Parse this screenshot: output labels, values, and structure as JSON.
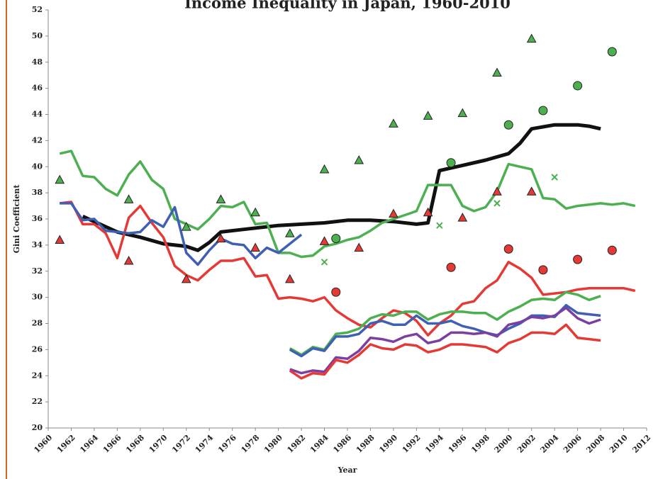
{
  "chart_data": {
    "type": "line",
    "title": "Income Inequality in Japan, 1960-2010",
    "x_label": "Year",
    "y_label": "Gini Coefficient",
    "xlim": [
      1960,
      2012
    ],
    "xticks": [
      1960,
      1962,
      1964,
      1966,
      1968,
      1970,
      1972,
      1974,
      1976,
      1978,
      1980,
      1982,
      1984,
      1986,
      1988,
      1990,
      1992,
      1994,
      1996,
      1998,
      2000,
      2002,
      2004,
      2006,
      2008,
      2010,
      2012
    ],
    "ylim": [
      20,
      52
    ],
    "yticks": [
      20,
      22,
      24,
      26,
      28,
      30,
      32,
      34,
      36,
      38,
      40,
      42,
      44,
      46,
      48,
      50,
      52
    ],
    "series": [
      {
        "marker": "line",
        "color": "#111111",
        "x": [
          1963,
          1964,
          1966,
          1968,
          1970,
          1972,
          1973,
          1974,
          1975,
          1977,
          1980,
          1982,
          1984,
          1986,
          1988,
          1990,
          1992,
          1993,
          1994,
          1996,
          1998,
          2000,
          2001,
          2002,
          2004,
          2006,
          2007,
          2008
        ],
        "values": [
          36.2,
          35.8,
          35.0,
          34.6,
          34.1,
          33.9,
          33.6,
          34.2,
          35.0,
          35.2,
          35.5,
          35.6,
          35.7,
          35.9,
          35.9,
          35.8,
          35.6,
          35.7,
          39.7,
          40.1,
          40.5,
          41.0,
          41.8,
          42.9,
          43.2,
          43.2,
          43.1,
          42.9
        ]
      },
      {
        "marker": "line",
        "color": "#4caf50",
        "x": [
          1961,
          1962,
          1963,
          1964,
          1965,
          1966,
          1967,
          1968,
          1969,
          1970,
          1971,
          1972,
          1973,
          1974,
          1975,
          1976,
          1977,
          1978,
          1979,
          1980,
          1981,
          1982,
          1983,
          1984,
          1985,
          1986,
          1987,
          1988,
          1989,
          1990,
          1991,
          1992,
          1993,
          1994,
          1995,
          1996,
          1997,
          1998,
          1999,
          2000,
          2001,
          2002,
          2003,
          2004,
          2005,
          2006,
          2007,
          2008,
          2009,
          2010,
          2011
        ],
        "values": [
          41.0,
          41.2,
          39.3,
          39.2,
          38.3,
          37.8,
          39.4,
          40.4,
          39.0,
          38.3,
          36.0,
          35.6,
          35.2,
          36.0,
          37.0,
          36.9,
          37.3,
          35.6,
          35.7,
          33.4,
          33.4,
          33.1,
          33.2,
          33.9,
          34.1,
          34.4,
          34.6,
          35.1,
          35.7,
          36.0,
          36.3,
          36.6,
          38.6,
          38.6,
          38.6,
          37.0,
          36.6,
          36.9,
          38.1,
          40.2,
          40.0,
          39.8,
          37.6,
          37.5,
          36.8,
          37.0,
          37.1,
          37.2,
          37.1,
          37.2,
          37.0
        ]
      },
      {
        "marker": "line",
        "color": "#e53935",
        "x": [
          1961,
          1962,
          1963,
          1964,
          1965,
          1966,
          1967,
          1968,
          1969,
          1970,
          1971,
          1972,
          1973,
          1974,
          1975,
          1976,
          1977,
          1978,
          1979,
          1980,
          1981,
          1982,
          1983,
          1984,
          1985,
          1986,
          1987,
          1988,
          1989,
          1990,
          1991,
          1992,
          1993,
          1994,
          1995,
          1996,
          1997,
          1998,
          1999,
          2000,
          2001,
          2002,
          2003,
          2004,
          2005,
          2006,
          2007,
          2008,
          2009,
          2010,
          2011
        ],
        "values": [
          37.2,
          37.3,
          35.6,
          35.6,
          34.9,
          33.0,
          36.1,
          37.0,
          35.7,
          34.6,
          32.4,
          31.7,
          31.3,
          32.1,
          32.8,
          32.8,
          33.0,
          31.6,
          31.7,
          29.9,
          30.0,
          29.9,
          29.7,
          30.0,
          29.0,
          28.4,
          27.9,
          27.7,
          28.4,
          29.0,
          28.8,
          28.2,
          27.1,
          28.0,
          28.6,
          29.5,
          29.7,
          30.7,
          31.3,
          32.7,
          32.2,
          31.5,
          30.2,
          30.3,
          30.4,
          30.6,
          30.7,
          30.7,
          30.7,
          30.7,
          30.5
        ]
      },
      {
        "marker": "line",
        "color": "#3f5fb5",
        "x": [
          1961,
          1962,
          1963,
          1964,
          1965,
          1966,
          1967,
          1968,
          1969,
          1970,
          1971,
          1972,
          1973,
          1974,
          1975,
          1976,
          1977,
          1978,
          1979,
          1980,
          1981,
          1982
        ],
        "values": [
          37.2,
          37.2,
          35.9,
          36.0,
          35.1,
          35.0,
          34.9,
          35.0,
          35.9,
          35.4,
          36.9,
          33.4,
          32.5,
          33.6,
          34.5,
          34.1,
          34.0,
          33.0,
          33.8,
          33.4,
          34.1,
          34.8
        ]
      },
      {
        "marker": "line",
        "color": "#4caf50",
        "x": [
          1981,
          1982,
          1983,
          1984,
          1985,
          1986,
          1987,
          1988,
          1989,
          1990,
          1991,
          1992,
          1993,
          1994,
          1995,
          1996,
          1997,
          1998,
          1999,
          2000,
          2001,
          2002,
          2003,
          2004,
          2005,
          2006,
          2007,
          2008
        ],
        "values": [
          26.1,
          25.6,
          26.2,
          26.0,
          27.2,
          27.3,
          27.6,
          28.4,
          28.7,
          28.6,
          28.9,
          28.9,
          28.3,
          28.7,
          28.9,
          28.9,
          28.8,
          28.8,
          28.3,
          28.9,
          29.3,
          29.8,
          29.9,
          29.8,
          30.4,
          30.2,
          29.8,
          30.1
        ]
      },
      {
        "marker": "line",
        "color": "#3f5fb5",
        "x": [
          1981,
          1982,
          1983,
          1984,
          1985,
          1986,
          1987,
          1988,
          1989,
          1990,
          1991,
          1992,
          1993,
          1994,
          1995,
          1996,
          1997,
          1998,
          1999,
          2000,
          2001,
          2002,
          2003,
          2004,
          2005,
          2006,
          2007,
          2008
        ],
        "values": [
          26.0,
          25.5,
          26.1,
          25.9,
          27.0,
          27.0,
          27.2,
          28.0,
          28.2,
          27.9,
          27.9,
          28.6,
          28.0,
          28.0,
          28.2,
          27.8,
          27.6,
          27.3,
          27.1,
          27.6,
          28.0,
          28.6,
          28.6,
          28.5,
          29.4,
          28.8,
          28.7,
          28.6
        ]
      },
      {
        "marker": "line",
        "color": "#7b3fa0",
        "x": [
          1981,
          1982,
          1983,
          1984,
          1985,
          1986,
          1987,
          1988,
          1989,
          1990,
          1991,
          1992,
          1993,
          1994,
          1995,
          1996,
          1997,
          1998,
          1999,
          2000,
          2001,
          2002,
          2003,
          2004,
          2005,
          2006,
          2007,
          2008
        ],
        "values": [
          24.5,
          24.2,
          24.4,
          24.3,
          25.4,
          25.3,
          25.9,
          26.9,
          26.8,
          26.6,
          27.0,
          27.2,
          26.5,
          26.7,
          27.3,
          27.3,
          27.2,
          27.3,
          27.0,
          27.9,
          28.1,
          28.5,
          28.4,
          28.6,
          29.2,
          28.4,
          28.0,
          28.3
        ]
      },
      {
        "marker": "line",
        "color": "#e53935",
        "x": [
          1981,
          1982,
          1983,
          1984,
          1985,
          1986,
          1987,
          1988,
          1989,
          1990,
          1991,
          1992,
          1993,
          1994,
          1995,
          1996,
          1997,
          1998,
          1999,
          2000,
          2001,
          2002,
          2003,
          2004,
          2005,
          2006,
          2007,
          2008
        ],
        "values": [
          24.4,
          23.8,
          24.2,
          24.1,
          25.2,
          25.0,
          25.6,
          26.4,
          26.1,
          26.0,
          26.4,
          26.3,
          25.8,
          26.0,
          26.4,
          26.4,
          26.3,
          26.2,
          25.8,
          26.5,
          26.8,
          27.3,
          27.3,
          27.2,
          27.9,
          26.9,
          26.8,
          26.7
        ]
      },
      {
        "marker": "triangle",
        "color": "#4caf50",
        "x": [
          1961,
          1967,
          1972,
          1975,
          1978,
          1981,
          1984,
          1987,
          1990,
          1993,
          1996,
          1999,
          2002
        ],
        "values": [
          39.0,
          37.5,
          35.4,
          37.5,
          36.5,
          34.9,
          39.8,
          40.5,
          43.3,
          43.9,
          44.1,
          47.2,
          49.8
        ]
      },
      {
        "marker": "triangle",
        "color": "#e53935",
        "x": [
          1961,
          1967,
          1972,
          1975,
          1978,
          1981,
          1984,
          1987,
          1990,
          1993,
          1996,
          1999,
          2002
        ],
        "values": [
          34.4,
          32.8,
          31.4,
          34.5,
          33.8,
          31.4,
          34.3,
          33.8,
          36.4,
          36.5,
          36.1,
          38.1,
          38.1
        ]
      },
      {
        "marker": "circle",
        "color": "#4caf50",
        "x": [
          1985,
          1995,
          2000,
          2003,
          2006,
          2009
        ],
        "values": [
          34.5,
          40.3,
          43.2,
          44.3,
          46.2,
          48.8
        ]
      },
      {
        "marker": "circle",
        "color": "#e53935",
        "x": [
          1985,
          1995,
          2000,
          2003,
          2006,
          2009
        ],
        "values": [
          30.4,
          32.3,
          33.7,
          32.1,
          32.9,
          33.6
        ]
      },
      {
        "marker": "x",
        "color": "#4caf50",
        "x": [
          1984,
          1994,
          1999,
          2004
        ],
        "values": [
          32.7,
          35.5,
          37.2,
          39.2
        ]
      }
    ]
  }
}
